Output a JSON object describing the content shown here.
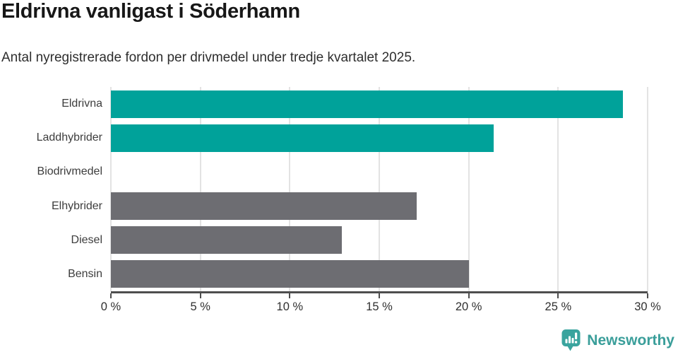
{
  "chart_data": {
    "type": "bar",
    "orientation": "horizontal",
    "title": "Eldrivna vanligast i Söderhamn",
    "subtitle": "Antal nyregistrerade fordon per drivmedel under tredje kvartalet 2025.",
    "categories": [
      "Eldrivna",
      "Laddhybrider",
      "Biodrivmedel",
      "Elhybrider",
      "Diesel",
      "Bensin"
    ],
    "values": [
      28.6,
      21.4,
      0,
      17.1,
      12.9,
      20.0
    ],
    "unit": "%",
    "xlim": [
      0,
      30
    ],
    "x_ticks": [
      0,
      5,
      10,
      15,
      20,
      25,
      30
    ],
    "x_tick_labels": [
      "0 %",
      "5 %",
      "10 %",
      "15 %",
      "20 %",
      "25 %",
      "30 %"
    ],
    "grid": true,
    "legend": "none",
    "bar_colors": [
      "#00a29a",
      "#00a29a",
      "#6d6d72",
      "#6d6d72",
      "#6d6d72",
      "#6d6d72"
    ],
    "highlight_color": "#00a29a",
    "default_color": "#6d6d72",
    "gridline_color": "#e3e3e3",
    "axis_color": "#4e4e4e"
  },
  "footer": {
    "brand": "Newsworthy",
    "brand_color": "#3a9e9a",
    "logo_icon": "newsworthy-speech-bubble-bar-chart-icon"
  }
}
